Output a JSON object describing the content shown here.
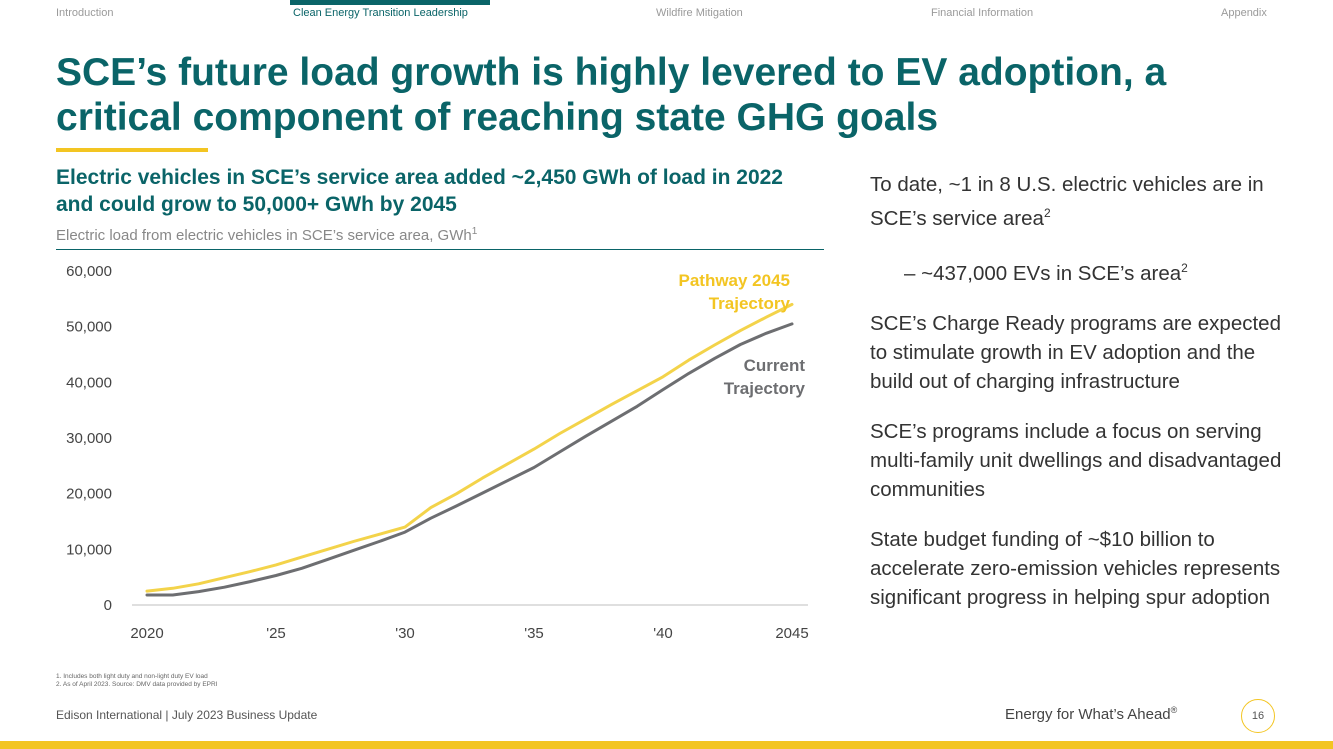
{
  "nav": {
    "items": [
      "Introduction",
      "Clean Energy Transition Leadership",
      "Wildfire Mitigation",
      "Financial Information",
      "Appendix"
    ],
    "active": "Clean Energy Transition Leadership"
  },
  "title": "SCE’s future load growth is highly levered to EV adoption, a critical component of reaching state GHG goals",
  "chart_heading": "Electric vehicles in SCE’s service area added ~2,450 GWh of load in 2022 and could grow to 50,000+ GWh by 2045",
  "chart_subtitle": "Electric load from electric vehicles in SCE’s service area, GWh",
  "chart_subtitle_note": "1",
  "chart_data": {
    "type": "line",
    "title": "Electric load from electric vehicles in SCE’s service area, GWh",
    "xlabel": "",
    "ylabel": "GWh",
    "ylim": [
      0,
      60000
    ],
    "yticks": [
      0,
      10000,
      20000,
      30000,
      40000,
      50000,
      60000
    ],
    "ytick_labels": [
      "0",
      "10,000",
      "20,000",
      "30,000",
      "40,000",
      "50,000",
      "60,000"
    ],
    "xlim": [
      2020,
      2045
    ],
    "xticks": [
      2020,
      2025,
      2030,
      2035,
      2040,
      2045
    ],
    "xtick_labels": [
      "2020",
      "'25",
      "'30",
      "'35",
      "'40",
      "2045"
    ],
    "x": [
      2020,
      2021,
      2022,
      2023,
      2024,
      2025,
      2026,
      2027,
      2028,
      2029,
      2030,
      2031,
      2032,
      2033,
      2034,
      2035,
      2036,
      2037,
      2038,
      2039,
      2040,
      2041,
      2042,
      2043,
      2044,
      2045
    ],
    "series": [
      {
        "name": "Pathway 2045 Trajectory",
        "label_lines": [
          "Pathway 2045",
          "Trajectory"
        ],
        "color": "#f3d34a",
        "values": [
          2500,
          3000,
          3800,
          4900,
          6000,
          7200,
          8600,
          10000,
          11400,
          12700,
          14000,
          17500,
          20000,
          22800,
          25400,
          28000,
          30800,
          33400,
          36000,
          38500,
          41000,
          44000,
          46700,
          49300,
          51700,
          54000
        ]
      },
      {
        "name": "Current Trajectory",
        "label_lines": [
          "Current",
          "Trajectory"
        ],
        "color": "#6d6e71",
        "values": [
          1800,
          1800,
          2400,
          3200,
          4200,
          5300,
          6600,
          8200,
          9800,
          11400,
          13100,
          15600,
          17800,
          20100,
          22400,
          24700,
          27500,
          30300,
          33000,
          35700,
          38700,
          41600,
          44300,
          46800,
          48800,
          50500
        ]
      }
    ]
  },
  "bullets": [
    {
      "text": "To date, ~1 in 8 U.S. electric vehicles are in SCE’s service area",
      "note": "2"
    },
    {
      "text": "– ~437,000 EVs in SCE’s area",
      "note": "2"
    },
    {
      "text": "SCE’s Charge Ready programs are expected to stimulate growth in EV adoption and the build out of charging infrastructure",
      "note": ""
    },
    {
      "text": "SCE’s programs include a focus on serving multi-family unit dwellings and disadvantaged communities",
      "note": ""
    },
    {
      "text": "State budget funding of ~$10 billion to accelerate zero-emission vehicles represents significant progress in helping spur adoption",
      "note": ""
    }
  ],
  "footnotes": [
    "1.  Includes both light duty and non-light duty EV load",
    "2.  As of April 2023. Source: DMV data provided by EPRI"
  ],
  "footer": {
    "left": "Edison International | July 2023 Business Update",
    "tagline": "Energy for What’s Ahead",
    "tagline_mark": "®",
    "page_number": "16"
  },
  "colors": {
    "brand_teal": "#0a6468",
    "accent_yellow": "#f3c522",
    "text": "#333333"
  }
}
